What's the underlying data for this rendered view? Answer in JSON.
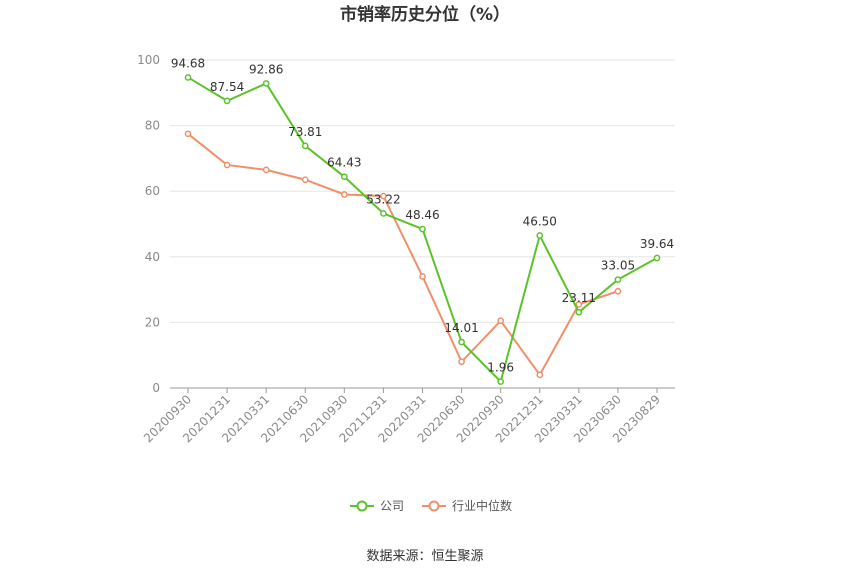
{
  "chart_data": {
    "type": "line",
    "title": "市销率历史分位（%）",
    "categories": [
      "20200930",
      "20201231",
      "20210331",
      "20210630",
      "20210930",
      "20211231",
      "20220331",
      "20220630",
      "20220930",
      "20221231",
      "20230331",
      "20230630",
      "20230829"
    ],
    "ylim": [
      0,
      100
    ],
    "yticks": [
      0,
      20,
      40,
      60,
      80,
      100
    ],
    "grid": true,
    "legend_position": "bottom",
    "series": [
      {
        "name": "公司",
        "color": "#5cc22b",
        "values": [
          94.68,
          87.54,
          92.86,
          73.81,
          64.43,
          53.22,
          48.46,
          14.01,
          1.96,
          46.5,
          23.11,
          33.05,
          39.64
        ],
        "labels": [
          "94.68",
          "87.54",
          "92.86",
          "73.81",
          "64.43",
          "53.22",
          "48.46",
          "14.01",
          "1.96",
          "46.50",
          "23.11",
          "33.05",
          "39.64"
        ]
      },
      {
        "name": "行业中位数",
        "color": "#f0906a",
        "values": [
          77.5,
          68,
          66.5,
          63.5,
          59,
          58.5,
          34,
          8,
          20.5,
          4,
          25.5,
          29.5,
          null
        ]
      }
    ]
  },
  "source_text": "数据来源：恒生聚源"
}
